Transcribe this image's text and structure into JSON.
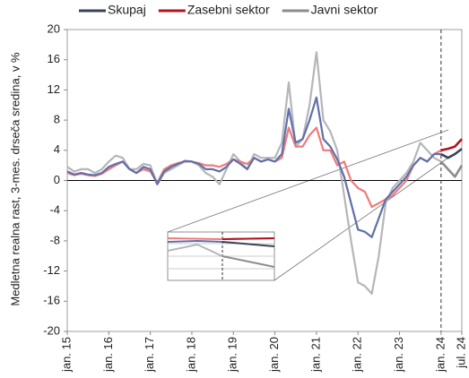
{
  "chart_data": {
    "type": "line",
    "y_axis_label": "Medletna realna rast, 3-mes. drseča sredina, v %",
    "categories": [
      "jan. 15",
      null,
      null,
      null,
      null,
      null,
      "jan. 16",
      null,
      null,
      null,
      null,
      null,
      "jan. 17",
      null,
      null,
      null,
      null,
      null,
      "jan. 18",
      null,
      null,
      null,
      null,
      null,
      "jan. 19",
      null,
      null,
      null,
      null,
      null,
      "jan. 20",
      null,
      null,
      null,
      null,
      null,
      "jan. 21",
      null,
      null,
      null,
      null,
      null,
      "jan. 22",
      null,
      null,
      null,
      null,
      null,
      "jan. 23",
      null,
      null,
      null,
      null,
      null,
      "jan. 24",
      null,
      null,
      "jul. 24"
    ],
    "series": [
      {
        "name": "Skupaj",
        "color": "#3a4256",
        "earlier_color": "#6070a8",
        "values": [
          1.2,
          0.8,
          1.0,
          0.8,
          0.7,
          1.0,
          1.8,
          2.2,
          2.5,
          1.5,
          1.0,
          1.8,
          1.5,
          -0.5,
          1.2,
          1.8,
          2.2,
          2.6,
          2.5,
          2.2,
          1.5,
          1.5,
          1.2,
          1.8,
          2.8,
          2.2,
          1.5,
          3.0,
          2.5,
          2.8,
          2.5,
          3.5,
          9.5,
          5.0,
          5.5,
          8.0,
          11.0,
          5.5,
          4.5,
          2.8,
          0.5,
          -3.0,
          -6.5,
          -6.8,
          -7.5,
          -5.0,
          -2.5,
          -1.5,
          -0.5,
          0.5,
          2.0,
          3.0,
          2.5,
          3.5,
          3.5,
          3.0,
          3.5,
          4.2
        ]
      },
      {
        "name": "Zasebni sektor",
        "color": "#b0141e",
        "earlier_color": "#f07a7a",
        "values": [
          1.0,
          0.7,
          0.9,
          0.7,
          0.6,
          0.9,
          1.5,
          2.0,
          2.5,
          1.5,
          1.0,
          1.5,
          1.2,
          -0.3,
          1.5,
          2.0,
          2.3,
          2.5,
          2.5,
          2.3,
          2.0,
          2.0,
          1.8,
          2.2,
          2.8,
          2.5,
          2.2,
          3.0,
          2.5,
          2.8,
          2.5,
          3.0,
          7.0,
          4.5,
          4.5,
          6.0,
          7.0,
          4.0,
          4.0,
          2.0,
          2.5,
          0.0,
          -1.0,
          -1.5,
          -3.5,
          -3.0,
          -2.5,
          -2.0,
          -1.0,
          0.0,
          2.0,
          3.0,
          2.5,
          3.5,
          4.0,
          4.2,
          4.5,
          5.5
        ]
      },
      {
        "name": "Javni sektor",
        "color": "#8a8c90",
        "earlier_color": "#b4b6ba",
        "values": [
          1.8,
          1.2,
          1.5,
          1.5,
          1.0,
          1.5,
          2.5,
          3.3,
          3.0,
          1.5,
          1.5,
          2.2,
          2.0,
          -0.5,
          1.0,
          1.5,
          2.0,
          2.5,
          2.5,
          2.0,
          1.0,
          0.5,
          -0.5,
          1.5,
          3.5,
          2.5,
          1.5,
          3.5,
          3.0,
          3.0,
          3.0,
          5.0,
          13.0,
          4.5,
          5.5,
          10.0,
          17.0,
          8.0,
          6.5,
          4.0,
          -2.0,
          -8.0,
          -13.5,
          -14.0,
          -15.0,
          -10.0,
          -3.0,
          -1.0,
          0.0,
          1.0,
          2.5,
          5.0,
          4.0,
          3.0,
          2.5,
          1.5,
          0.5,
          2.0
        ]
      }
    ],
    "vline_category": "jan. 24",
    "ylim": [
      -20,
      20
    ],
    "yticks": [
      -20,
      -16,
      -12,
      -8,
      -4,
      0,
      4,
      8,
      12,
      16,
      20
    ],
    "legend": "top"
  }
}
